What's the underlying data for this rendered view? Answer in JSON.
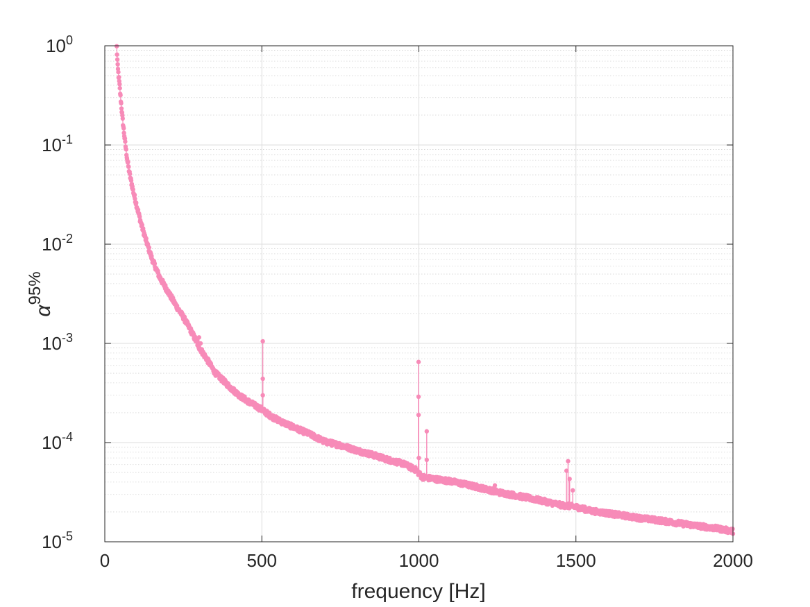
{
  "chart_data": {
    "type": "line",
    "xlabel": "frequency [Hz]",
    "ylabel_base": "α",
    "ylabel_sup": "95%",
    "xlim": [
      0,
      2000
    ],
    "ylim": [
      1e-05,
      1
    ],
    "yscale": "log",
    "grid": true,
    "minor_grid_y": true,
    "legend": "none",
    "x_ticks": [
      0,
      500,
      1000,
      1500,
      2000
    ],
    "x_tick_labels": [
      "0",
      "500",
      "1000",
      "1500",
      "2000"
    ],
    "y_tick_values": [
      1e-05,
      0.0001,
      0.001,
      0.01,
      0.1,
      1
    ],
    "y_tick_labels": [
      {
        "base": "10",
        "exp": "-5"
      },
      {
        "base": "10",
        "exp": "-4"
      },
      {
        "base": "10",
        "exp": "-3"
      },
      {
        "base": "10",
        "exp": "-2"
      },
      {
        "base": "10",
        "exp": "-1"
      },
      {
        "base": "10",
        "exp": "0"
      }
    ],
    "series": [
      {
        "color": "#f78bb8",
        "marker": "circle",
        "curve_points": [
          [
            38,
            0.95
          ],
          [
            41,
            0.6
          ],
          [
            46,
            0.42
          ],
          [
            50,
            0.3
          ],
          [
            55,
            0.2
          ],
          [
            60,
            0.14
          ],
          [
            66,
            0.095
          ],
          [
            72,
            0.068
          ],
          [
            80,
            0.048
          ],
          [
            90,
            0.034
          ],
          [
            100,
            0.025
          ],
          [
            115,
            0.016
          ],
          [
            130,
            0.011
          ],
          [
            150,
            0.007
          ],
          [
            175,
            0.0045
          ],
          [
            200,
            0.0033
          ],
          [
            225,
            0.0024
          ],
          [
            250,
            0.0018
          ],
          [
            275,
            0.0013
          ],
          [
            300,
            0.0009
          ],
          [
            325,
            0.00068
          ],
          [
            350,
            0.0005
          ],
          [
            375,
            0.00042
          ],
          [
            400,
            0.00035
          ],
          [
            430,
            0.00029
          ],
          [
            460,
            0.00025
          ],
          [
            490,
            0.00022
          ],
          [
            500,
            0.00021
          ],
          [
            530,
            0.00018
          ],
          [
            560,
            0.00016
          ],
          [
            600,
            0.00014
          ],
          [
            650,
            0.00012
          ],
          [
            700,
            0.0001
          ],
          [
            750,
            9.2e-05
          ],
          [
            800,
            8.2e-05
          ],
          [
            850,
            7.4e-05
          ],
          [
            900,
            6.6e-05
          ],
          [
            950,
            6e-05
          ],
          [
            990,
            5.2e-05
          ],
          [
            1010,
            4.4e-05
          ],
          [
            1050,
            4.2e-05
          ],
          [
            1100,
            4e-05
          ],
          [
            1150,
            3.7e-05
          ],
          [
            1200,
            3.4e-05
          ],
          [
            1250,
            3.1e-05
          ],
          [
            1300,
            2.9e-05
          ],
          [
            1350,
            2.7e-05
          ],
          [
            1400,
            2.5e-05
          ],
          [
            1450,
            2.3e-05
          ],
          [
            1500,
            2.2e-05
          ],
          [
            1550,
            2e-05
          ],
          [
            1600,
            1.9e-05
          ],
          [
            1650,
            1.8e-05
          ],
          [
            1700,
            1.7e-05
          ],
          [
            1750,
            1.63e-05
          ],
          [
            1800,
            1.55e-05
          ],
          [
            1850,
            1.47e-05
          ],
          [
            1900,
            1.4e-05
          ],
          [
            1950,
            1.33e-05
          ],
          [
            2000,
            1.25e-05
          ]
        ],
        "spikes": [
          {
            "x": 300,
            "y": 0.00115
          },
          {
            "x": 305,
            "y": 0.001
          },
          {
            "x": 503,
            "y": 0.00105
          },
          {
            "x": 503,
            "y": 0.00044
          },
          {
            "x": 503,
            "y": 0.0003
          },
          {
            "x": 999,
            "y": 0.00065
          },
          {
            "x": 999,
            "y": 0.00029
          },
          {
            "x": 999,
            "y": 0.00019
          },
          {
            "x": 1000,
            "y": 7e-05
          },
          {
            "x": 1025,
            "y": 0.00013
          },
          {
            "x": 1025,
            "y": 6.7e-05
          },
          {
            "x": 1242,
            "y": 3.7e-05
          },
          {
            "x": 1470,
            "y": 5.2e-05
          },
          {
            "x": 1475,
            "y": 6.5e-05
          },
          {
            "x": 1480,
            "y": 4.3e-05
          },
          {
            "x": 1490,
            "y": 3.3e-05
          }
        ]
      }
    ]
  }
}
